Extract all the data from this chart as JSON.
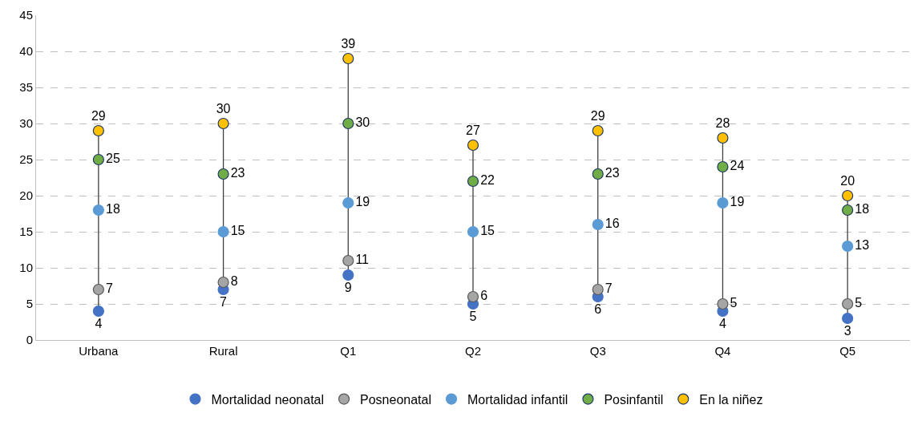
{
  "chart_data": {
    "type": "scatter",
    "categories": [
      "Urbana",
      "Rural",
      "Q1",
      "Q2",
      "Q3",
      "Q4",
      "Q5"
    ],
    "series": [
      {
        "name": "Mortalidad neonatal",
        "color": "#4472c4",
        "values": [
          4,
          7,
          9,
          5,
          6,
          4,
          3
        ]
      },
      {
        "name": "Posneonatal",
        "color": "#a5a5a5",
        "values": [
          7,
          8,
          11,
          6,
          7,
          5,
          5
        ]
      },
      {
        "name": "Mortalidad infantil",
        "color": "#5b9bd5",
        "values": [
          18,
          15,
          19,
          15,
          16,
          19,
          13
        ]
      },
      {
        "name": "Posinfantil",
        "color": "#70ad47",
        "values": [
          25,
          23,
          30,
          22,
          23,
          24,
          18
        ]
      },
      {
        "name": "En la niñez",
        "color": "#ffc000",
        "values": [
          29,
          30,
          39,
          27,
          29,
          28,
          20
        ]
      }
    ],
    "ylim": [
      0,
      45
    ],
    "yticks": [
      0,
      5,
      10,
      15,
      20,
      25,
      30,
      35,
      40,
      45
    ],
    "grid": "y",
    "legend": "bottom",
    "marker": "circle",
    "data_labels": true
  }
}
